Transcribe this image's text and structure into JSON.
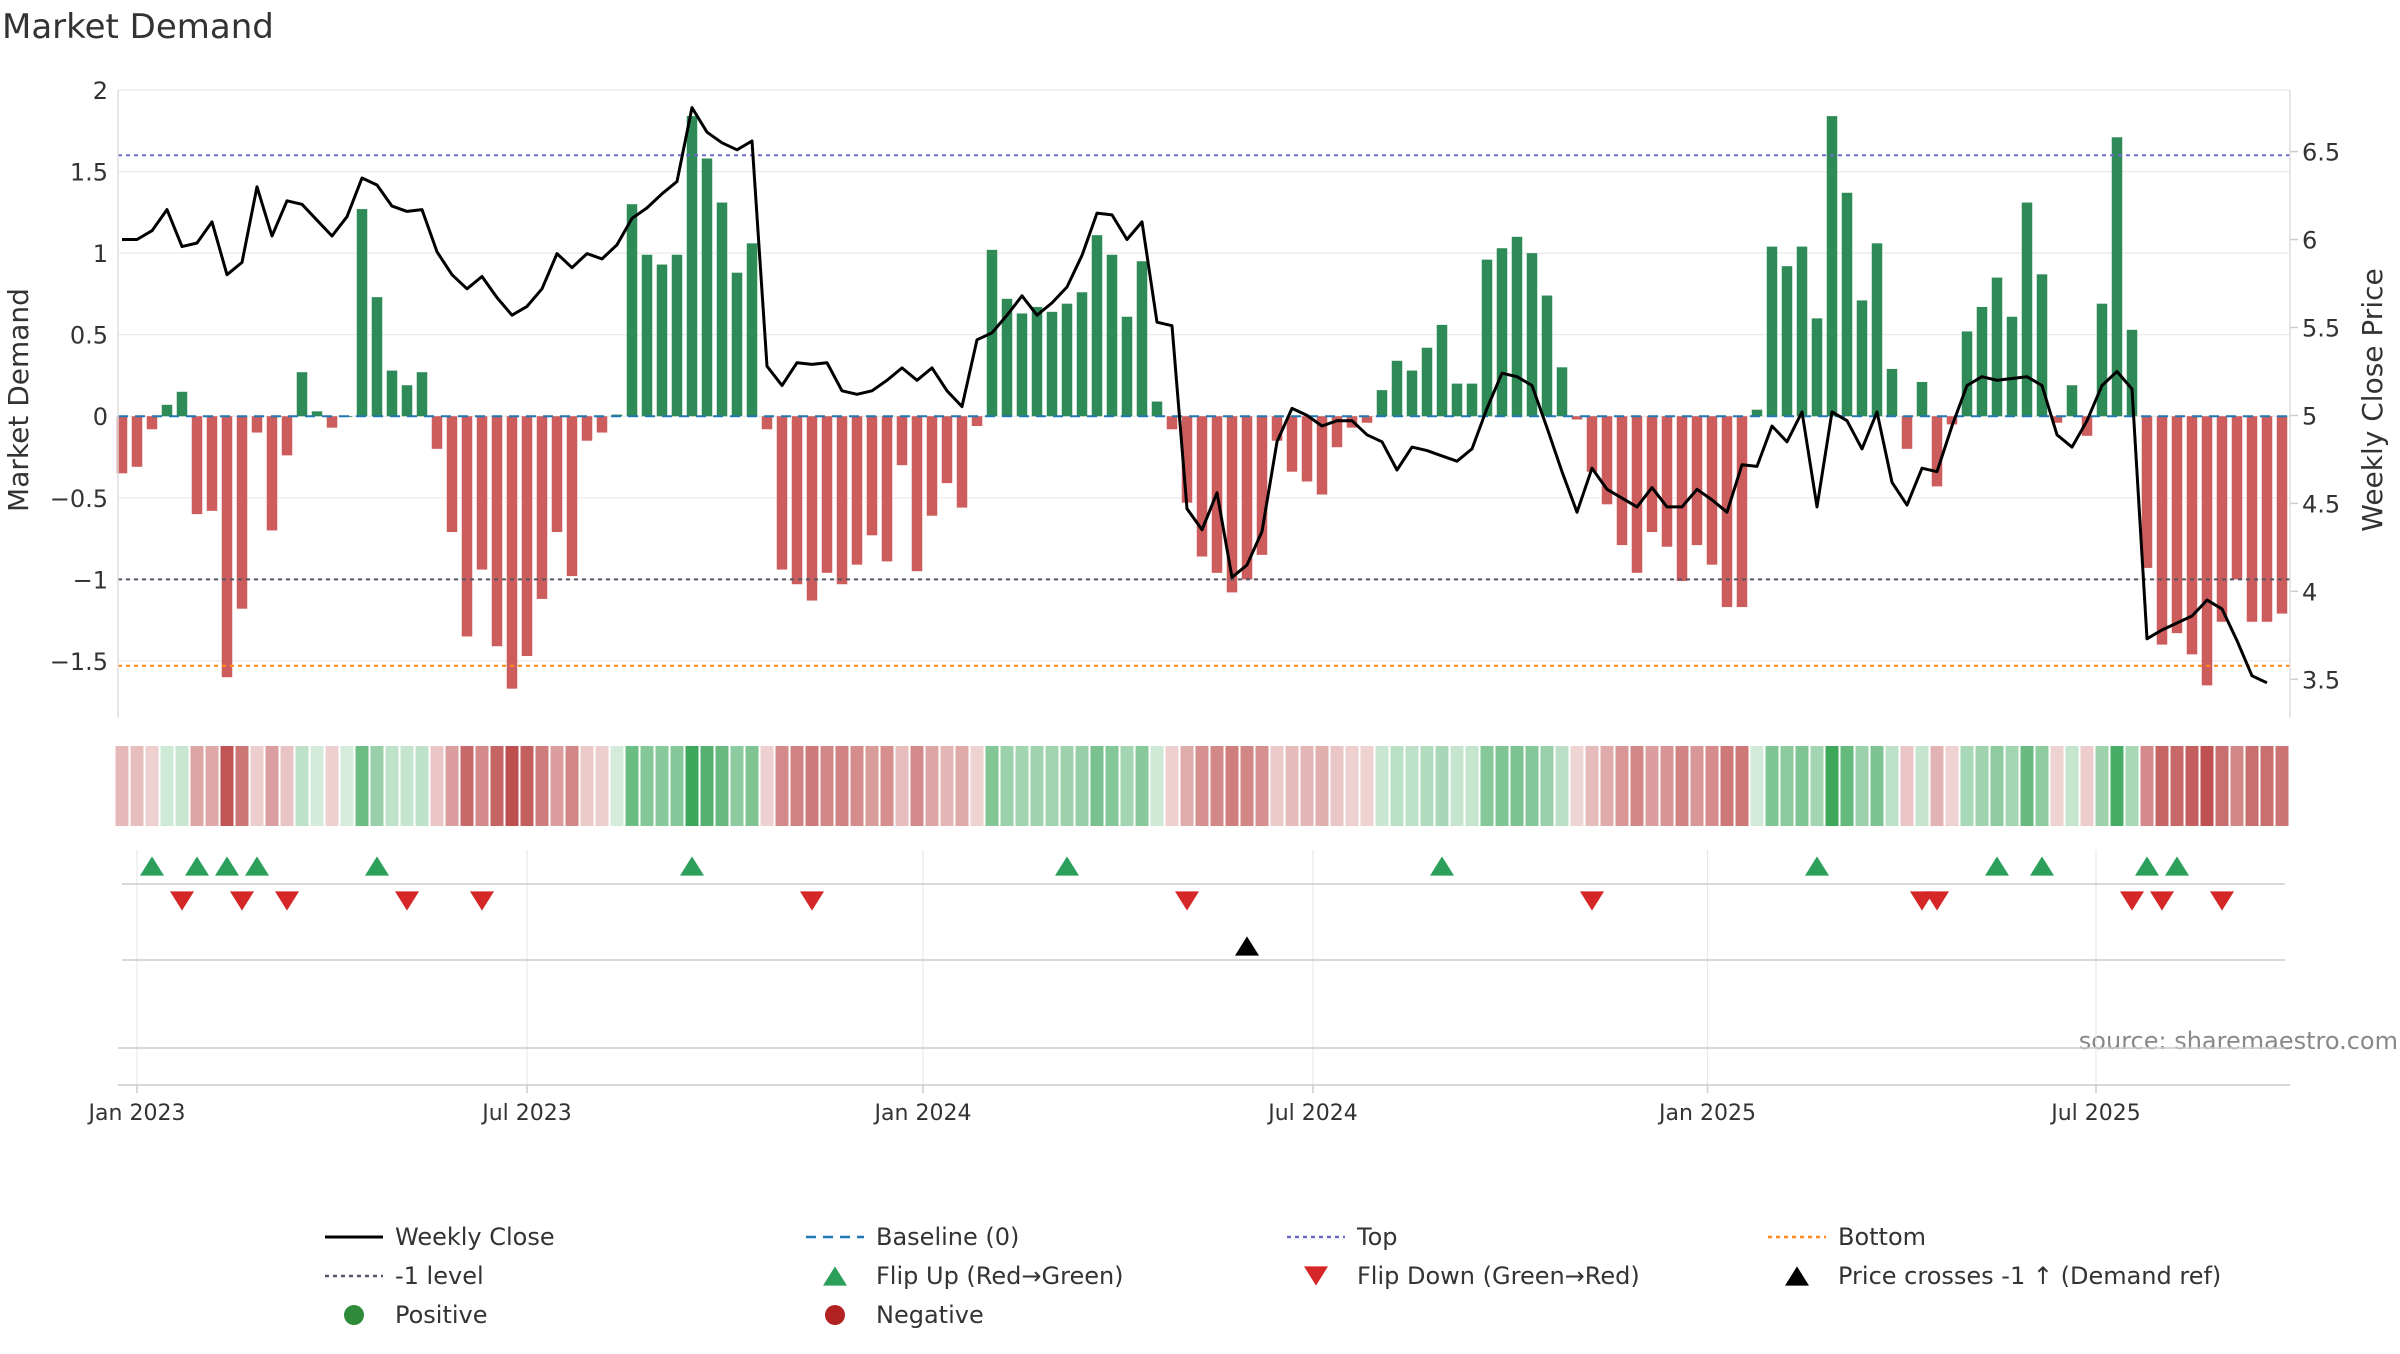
{
  "chart_data": {
    "type": "bar",
    "title": "Market Demand",
    "ylabel": "Market Demand",
    "y2label": "Weekly Close Price",
    "source": "source: sharemaestro.com",
    "ylim": [
      -1.85,
      2.0
    ],
    "y2lim": [
      3.28,
      6.85
    ],
    "yticks": [
      2,
      1.5,
      1,
      0.5,
      0,
      -0.5,
      -1,
      -1.5
    ],
    "ytick_labels": [
      "2",
      "1.5",
      "1",
      "0.5",
      "0",
      "−0.5",
      "−1",
      "−1.5"
    ],
    "y2ticks": [
      6.5,
      6,
      5.5,
      5,
      4.5,
      4,
      3.5
    ],
    "y2tick_labels": [
      "6.5",
      "6",
      "5.5",
      "5",
      "4.5",
      "4",
      "3.5"
    ],
    "x_ticks": [
      {
        "label": "Jan 2023",
        "week": 1
      },
      {
        "label": "Jul 2023",
        "week": 27
      },
      {
        "label": "Jan 2024",
        "week": 53.4
      },
      {
        "label": "Jul 2024",
        "week": 79.4
      },
      {
        "label": "Jan 2025",
        "week": 105.7
      },
      {
        "label": "Jul 2025",
        "week": 131.6
      }
    ],
    "reference_lines": {
      "top": 1.6,
      "bottom": -1.53,
      "minus_one": -1.0,
      "baseline": 0
    },
    "weeks": 144,
    "series": [
      {
        "name": "Market Demand",
        "values": [
          -0.35,
          -0.31,
          -0.08,
          0.07,
          0.15,
          -0.6,
          -0.58,
          -1.6,
          -1.18,
          -0.1,
          -0.7,
          -0.24,
          0.27,
          0.03,
          -0.07,
          0.0,
          1.27,
          0.73,
          0.28,
          0.19,
          0.27,
          -0.2,
          -0.71,
          -1.35,
          -0.94,
          -1.41,
          -1.67,
          -1.47,
          -1.12,
          -0.71,
          -0.98,
          -0.15,
          -0.1,
          0.01,
          1.3,
          0.99,
          0.93,
          0.99,
          1.84,
          1.58,
          1.31,
          0.88,
          1.06,
          -0.08,
          -0.94,
          -1.03,
          -1.13,
          -0.96,
          -1.03,
          -0.91,
          -0.73,
          -0.89,
          -0.3,
          -0.95,
          -0.61,
          -0.41,
          -0.56,
          -0.06,
          1.02,
          0.72,
          0.63,
          0.67,
          0.64,
          0.69,
          0.76,
          1.11,
          0.99,
          0.61,
          0.95,
          0.09,
          -0.08,
          -0.53,
          -0.86,
          -0.96,
          -1.08,
          -1.0,
          -0.85,
          -0.15,
          -0.34,
          -0.4,
          -0.48,
          -0.19,
          -0.07,
          -0.04,
          0.16,
          0.34,
          0.28,
          0.42,
          0.56,
          0.2,
          0.2,
          0.96,
          1.03,
          1.1,
          1.0,
          0.74,
          0.3,
          -0.02,
          -0.34,
          -0.54,
          -0.79,
          -0.96,
          -0.71,
          -0.8,
          -1.01,
          -0.79,
          -0.91,
          -1.17,
          -1.17,
          0.04,
          1.04,
          0.92,
          1.04,
          0.6,
          1.84,
          1.37,
          0.71,
          1.06,
          0.29,
          -0.2,
          0.21,
          -0.43,
          -0.05,
          0.52,
          0.67,
          0.85,
          0.61,
          1.31,
          0.87,
          -0.04,
          0.19,
          -0.12,
          0.69,
          1.71,
          0.53,
          -0.93,
          -1.4,
          -1.33,
          -1.46,
          -1.65,
          -1.26,
          -1.0,
          -1.26,
          -1.26,
          -1.21
        ]
      },
      {
        "name": "Weekly Close",
        "values": [
          6.0,
          6.0,
          6.05,
          6.17,
          5.96,
          5.98,
          6.1,
          5.8,
          5.87,
          6.3,
          6.02,
          6.22,
          6.2,
          6.11,
          6.02,
          6.13,
          6.35,
          6.31,
          6.19,
          6.16,
          6.17,
          5.93,
          5.8,
          5.72,
          5.79,
          5.67,
          5.57,
          5.62,
          5.72,
          5.92,
          5.84,
          5.92,
          5.89,
          5.97,
          6.12,
          6.18,
          6.26,
          6.33,
          6.75,
          6.61,
          6.55,
          6.51,
          6.56,
          5.28,
          5.17,
          5.3,
          5.29,
          5.3,
          5.14,
          5.12,
          5.14,
          5.2,
          5.27,
          5.2,
          5.27,
          5.14,
          5.05,
          5.43,
          5.47,
          5.57,
          5.68,
          5.57,
          5.64,
          5.73,
          5.91,
          6.15,
          6.14,
          6.0,
          6.1,
          5.53,
          5.51,
          4.47,
          4.35,
          4.56,
          4.08,
          4.15,
          4.34,
          4.85,
          5.04,
          5.0,
          4.94,
          4.97,
          4.97,
          4.89,
          4.85,
          4.69,
          4.82,
          4.8,
          4.77,
          4.74,
          4.81,
          5.04,
          5.24,
          5.22,
          5.17,
          4.93,
          4.68,
          4.45,
          4.7,
          4.58,
          4.53,
          4.48,
          4.59,
          4.48,
          4.48,
          4.58,
          4.52,
          4.45,
          4.72,
          4.71,
          4.94,
          4.85,
          5.02,
          4.48,
          5.02,
          4.97,
          4.81,
          5.02,
          4.62,
          4.49,
          4.7,
          4.68,
          4.94,
          5.17,
          5.22,
          5.2,
          5.21,
          5.22,
          5.17,
          4.89,
          4.82,
          4.97,
          5.17,
          5.25,
          5.15,
          3.73,
          3.78,
          3.82,
          3.86,
          3.95,
          3.9,
          3.72,
          3.52,
          3.48
        ]
      }
    ],
    "flips": {
      "up_weeks": [
        2,
        5,
        7,
        9,
        17,
        38,
        63,
        88,
        113,
        125,
        128,
        135,
        137
      ],
      "down_weeks": [
        4,
        8,
        11,
        19,
        24,
        46,
        71,
        98,
        120,
        121,
        134,
        136,
        140
      ],
      "price_cross_weeks": [
        75
      ]
    },
    "legend": {
      "placement": "bottom",
      "entries": [
        {
          "label": "Weekly Close",
          "marker": "line",
          "color": "#000000"
        },
        {
          "label": "Baseline (0)",
          "marker": "dashed-line",
          "color": "#1f77b4"
        },
        {
          "label": "Top",
          "marker": "dotted-line",
          "color": "#6a6acd"
        },
        {
          "label": "Bottom",
          "marker": "dotted-line",
          "color": "#ff8c1a"
        },
        {
          "label": "-1 level",
          "marker": "dotted-line",
          "color": "#555566"
        },
        {
          "label": "Flip Up (Red→Green)",
          "marker": "triangle-up",
          "color": "#2ca05a"
        },
        {
          "label": "Flip Down (Green→Red)",
          "marker": "triangle-down",
          "color": "#d62728"
        },
        {
          "label": "Price crosses -1 ↑ (Demand ref)",
          "marker": "triangle-up",
          "color": "#000000"
        },
        {
          "label": "Positive",
          "marker": "circle",
          "color": "#2e8b3a"
        },
        {
          "label": "Negative",
          "marker": "circle",
          "color": "#b22222"
        }
      ]
    },
    "colors": {
      "positive_bar": "#2e8b57",
      "negative_bar": "#cd5c5c",
      "price_line": "#000000",
      "baseline": "#1f77b4",
      "top_line": "#6a6acd",
      "bottom_line": "#ff8c1a",
      "minus_one_line": "#555566",
      "flip_up": "#2ca05a",
      "flip_down": "#d62728",
      "price_cross": "#000000",
      "grid": "#e8e8e8",
      "text": "#333333"
    }
  }
}
